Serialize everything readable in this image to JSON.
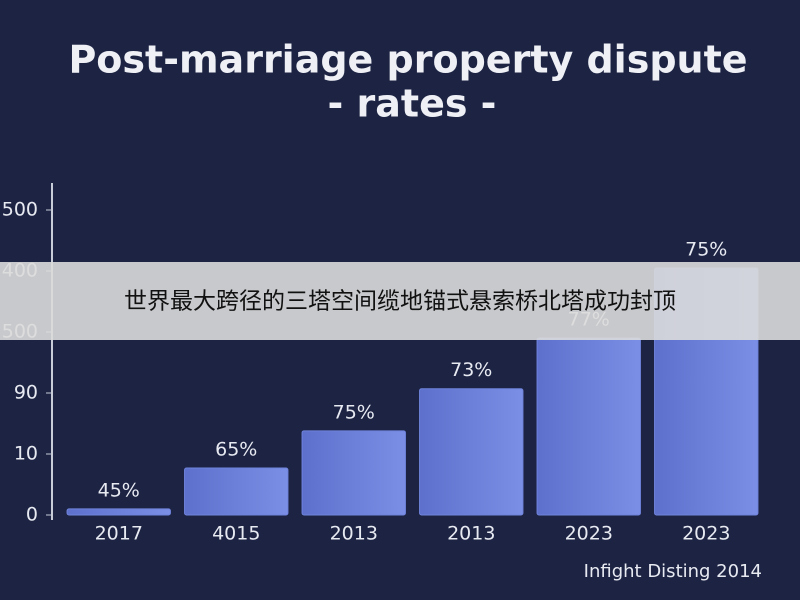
{
  "chart_data": {
    "type": "bar",
    "title": [
      "Post-marriage property dispute",
      "- rates -"
    ],
    "categories": [
      "2017",
      "4015",
      "2013",
      "2013",
      "2023",
      "2023"
    ],
    "values": [
      0.1,
      0.77,
      1.38,
      2.07,
      2.9,
      4.05
    ],
    "value_labels": [
      "45%",
      "65%",
      "75%",
      "73%",
      "77%",
      "75%"
    ],
    "color": "#6f83dc",
    "ylim": [
      0,
      5.4
    ],
    "yticks": [
      {
        "value": 0,
        "label": "0"
      },
      {
        "value": 1,
        "label": "10"
      },
      {
        "value": 2,
        "label": "90"
      },
      {
        "value": 3,
        "label": "500"
      },
      {
        "value": 4,
        "label": "400"
      },
      {
        "value": 5,
        "label": "500"
      }
    ],
    "footer": "Infight Disting 2014",
    "banner": "世界最大跨径的三塔空间缆地锚式悬索桥北塔成功封顶"
  }
}
